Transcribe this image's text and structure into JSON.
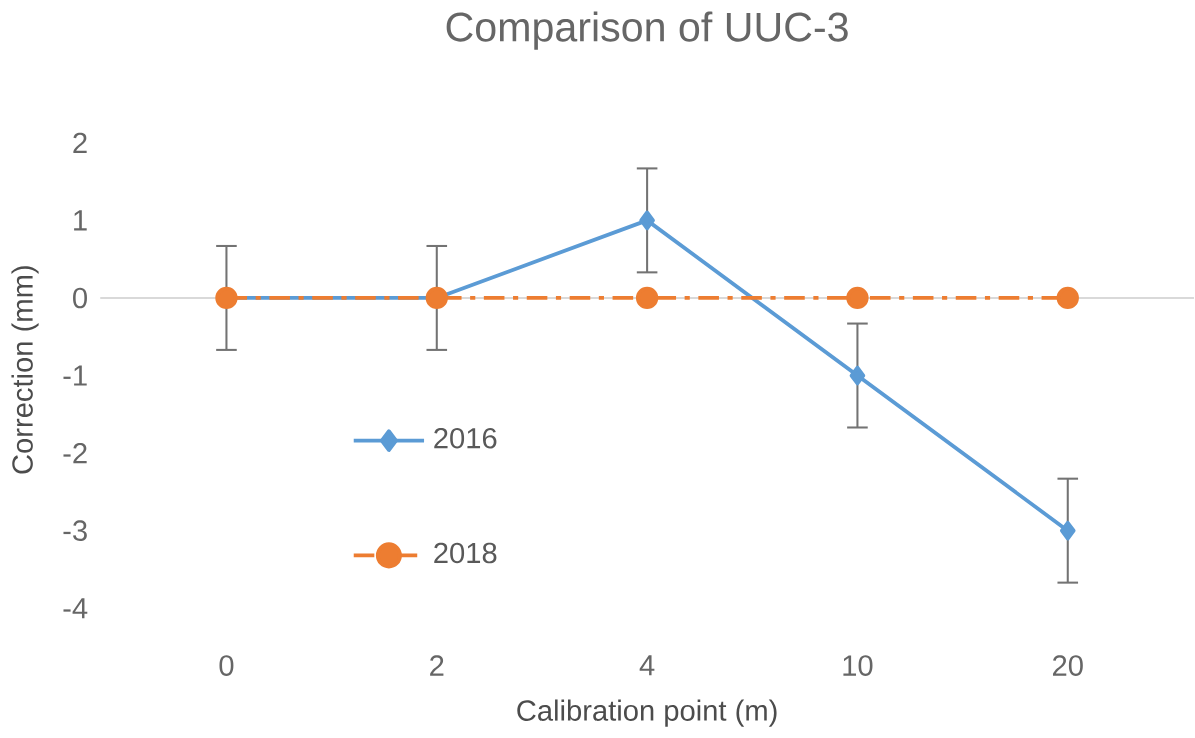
{
  "chart_data": {
    "type": "line",
    "title": "Comparison of UUC-3",
    "xlabel": "Calibration point (m)",
    "ylabel": "Correction (mm)",
    "categories": [
      "0",
      "2",
      "4",
      "10",
      "20"
    ],
    "series": [
      {
        "name": "2016",
        "color": "#5b9bd5",
        "values": [
          0,
          0,
          1,
          -1,
          -3
        ],
        "errors": [
          0.67,
          0.67,
          0.67,
          0.67,
          0.67
        ],
        "marker": "diamond",
        "line_style": "solid"
      },
      {
        "name": "2018",
        "color": "#ed7d31",
        "values": [
          0,
          0,
          0,
          0,
          0
        ],
        "marker": "circle",
        "line_style": "dashdot"
      }
    ],
    "ylim": [
      -4,
      2
    ],
    "yticks": [
      -4,
      -3,
      -2,
      -1,
      0,
      1,
      2
    ],
    "ref_lines": [
      {
        "axis": "y",
        "value": 0,
        "color": "#d9d9d9"
      }
    ],
    "grid": false,
    "legend": "left"
  }
}
